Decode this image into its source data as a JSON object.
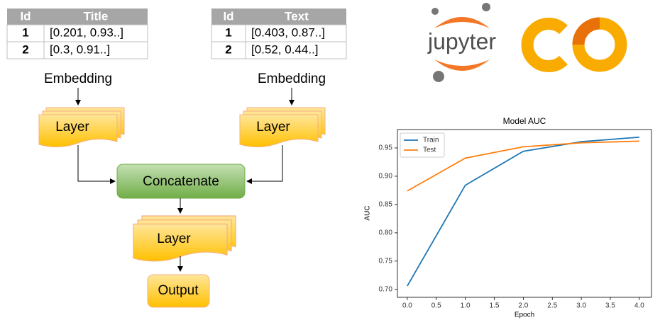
{
  "tables": [
    {
      "header": [
        "Id",
        "Title"
      ],
      "rows": [
        [
          "1",
          "[0.201, 0.93..]"
        ],
        [
          "2",
          "[0.3, 0.91..]"
        ]
      ]
    },
    {
      "header": [
        "Id",
        "Text"
      ],
      "rows": [
        [
          "1",
          "[0.403, 0.87..]"
        ],
        [
          "2",
          "[0.52, 0.44..]"
        ]
      ]
    }
  ],
  "nodes": {
    "embedding_left": "Embedding",
    "embedding_right": "Embedding",
    "layer_left": "Layer",
    "layer_right": "Layer",
    "concatenate": "Concatenate",
    "layer_bottom": "Layer",
    "output": "Output"
  },
  "logos": {
    "jupyter": "jupyter"
  },
  "chart_data": {
    "type": "line",
    "title": "Model AUC",
    "x_label": "Epoch",
    "y_label": "AUC",
    "x": [
      0,
      1,
      2,
      3,
      4
    ],
    "series": [
      {
        "name": "Train",
        "color": "#1f77b4",
        "values": [
          0.706,
          0.884,
          0.944,
          0.961,
          0.969
        ]
      },
      {
        "name": "Test",
        "color": "#ff7f0e",
        "values": [
          0.874,
          0.932,
          0.952,
          0.959,
          0.962
        ]
      }
    ],
    "xlim": [
      -0.17,
      4.21
    ],
    "ylim": [
      0.686,
      0.9825
    ],
    "xticks": [
      {
        "value": 0,
        "label": "0.0"
      },
      0.5,
      {
        "value": 1,
        "label": "1.0"
      },
      1.5,
      {
        "value": 2,
        "label": "2.0"
      },
      2.5,
      {
        "value": 3,
        "label": "3.0"
      },
      3.5,
      {
        "value": 4,
        "label": "4.0"
      }
    ],
    "yticks": [
      {
        "value": 0.7,
        "label": "0.70"
      },
      0.75,
      {
        "value": 0.8,
        "label": "0.80"
      },
      0.85,
      {
        "value": 0.9,
        "label": "0.90"
      },
      0.95
    ],
    "legend": "upper left"
  }
}
